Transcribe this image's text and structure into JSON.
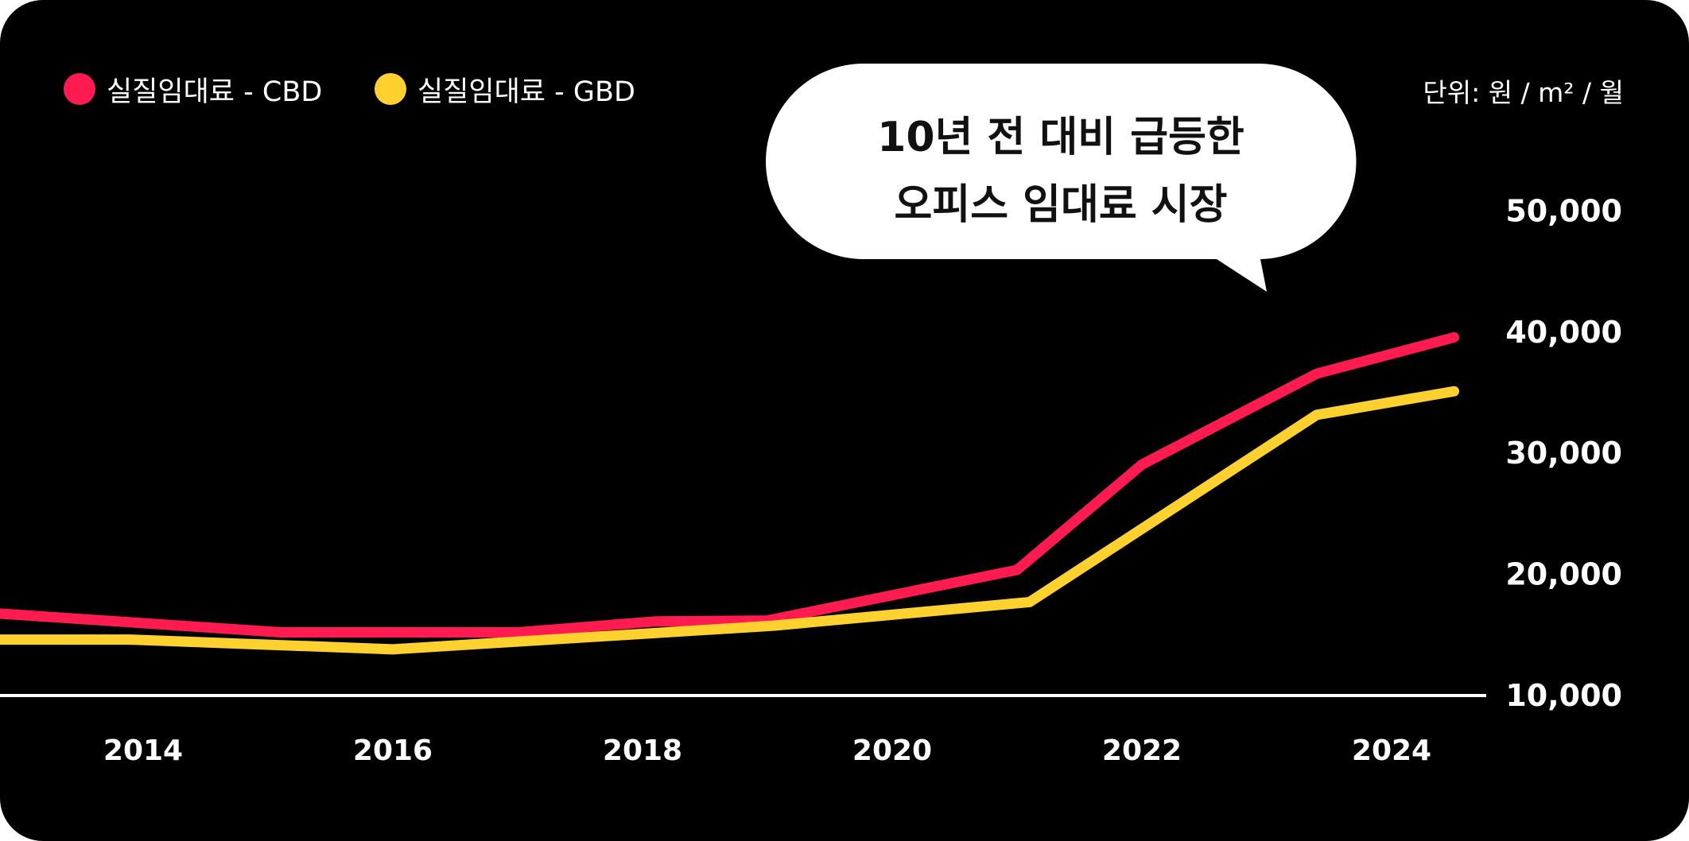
{
  "chart_data": {
    "type": "line",
    "title": "",
    "annotation": [
      "10년 전 대비 급등한",
      "오피스 임대료 시장"
    ],
    "units": "단위: 원 / m² / 월",
    "xlabel": "",
    "ylabel": "",
    "x_ticks": [
      "2014",
      "2016",
      "2018",
      "2020",
      "2022",
      "2024"
    ],
    "y_ticks": [
      "10,000",
      "20,000",
      "30,000",
      "40,000",
      "50,000"
    ],
    "ylim": [
      10000,
      50000
    ],
    "legend_position": "top-left",
    "series": [
      {
        "name": "실질임대료 - CBD",
        "color": "#FF1A4F",
        "points": [
          [
            2012.85,
            16700
          ],
          [
            2015.1,
            15150
          ],
          [
            2017.0,
            15150
          ],
          [
            2018.1,
            16050
          ],
          [
            2019.0,
            16130
          ],
          [
            2021.0,
            20300
          ],
          [
            2022.0,
            29000
          ],
          [
            2023.4,
            36500
          ],
          [
            2024.5,
            39500
          ]
        ]
      },
      {
        "name": "실질임대료 - GBD",
        "color": "#FFD12E",
        "points": [
          [
            2012.85,
            14550
          ],
          [
            2013.9,
            14550
          ],
          [
            2016.0,
            13750
          ],
          [
            2019.05,
            15700
          ],
          [
            2021.1,
            17650
          ],
          [
            2023.4,
            33100
          ],
          [
            2024.5,
            35050
          ]
        ]
      }
    ]
  }
}
